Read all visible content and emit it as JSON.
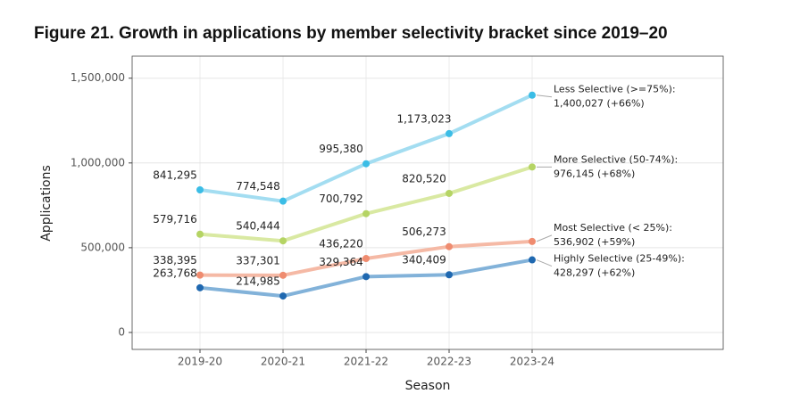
{
  "chart_data": {
    "type": "line",
    "title": "Figure 21. Growth in applications by member selectivity bracket since 2019–20",
    "x_label": "Season",
    "y_label": "Applications",
    "categories": [
      "2019-20",
      "2020-21",
      "2021-22",
      "2022-23",
      "2023-24"
    ],
    "series": [
      {
        "name": "Less Selective (>=75%):",
        "color": "#a3ddf1",
        "point_color": "#3bbde6",
        "values": [
          841295,
          774548,
          995380,
          1173023,
          1400027
        ],
        "value_labels": [
          "841,295",
          "774,548",
          "995,380",
          "1,173,023",
          "1,400,027 (+66%)"
        ]
      },
      {
        "name": "More Selective (50-74%):",
        "color": "#d9e9a2",
        "point_color": "#b5d464",
        "values": [
          579716,
          540444,
          700792,
          820520,
          976145
        ],
        "value_labels": [
          "579,716",
          "540,444",
          "700,792",
          "820,520",
          "976,145 (+68%)"
        ]
      },
      {
        "name": "Most Selective (< 25%):",
        "color": "#f5b9a5",
        "point_color": "#ef8c70",
        "values": [
          338395,
          337301,
          436220,
          506273,
          536902
        ],
        "value_labels": [
          "338,395",
          "337,301",
          "436,220",
          "506,273",
          "536,902 (+59%)"
        ]
      },
      {
        "name": "Highly Selective (25-49%):",
        "color": "#82b2d9",
        "point_color": "#1f68b0",
        "values": [
          263768,
          214985,
          329364,
          340409,
          428297
        ],
        "value_labels": [
          "263,768",
          "214,985",
          "329,364",
          "340,409",
          "428,297 (+62%)"
        ]
      }
    ],
    "ylim": [
      -100000,
      1630000
    ],
    "yticks": [
      {
        "value": 0,
        "label": "0"
      },
      {
        "value": 500000,
        "label": "500,000"
      },
      {
        "value": 1000000,
        "label": "1,000,000"
      },
      {
        "value": 1500000,
        "label": "1,500,000"
      }
    ],
    "grid": true
  }
}
